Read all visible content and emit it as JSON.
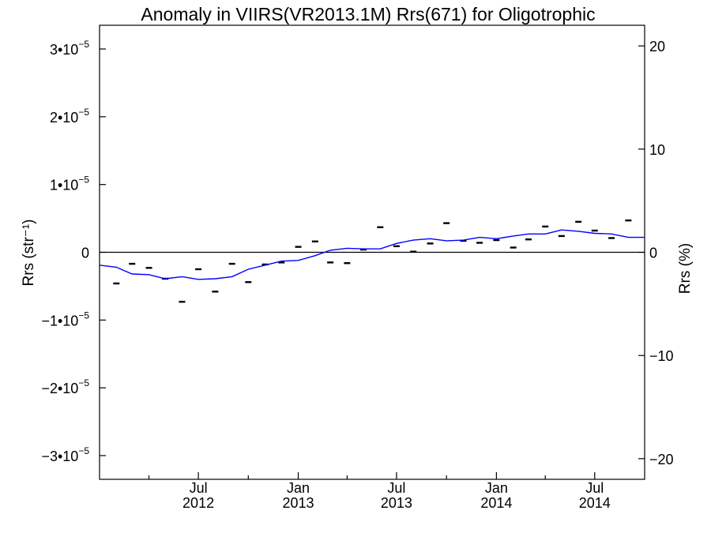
{
  "chart_data": {
    "type": "line",
    "title": "Anomaly in VIIRS(VR2013.1M) Rrs(671) for Oligotrophic",
    "ylabel": "Rrs (str⁻¹)",
    "y2label": "Rrs (%)",
    "xlabel": "",
    "x_range": [
      "2012-01-01",
      "2014-10-01"
    ],
    "ylim": [
      -3.35e-05,
      3.35e-05
    ],
    "y2lim": [
      -22,
      22
    ],
    "grid": false,
    "legend": "none",
    "zero_line": true,
    "y_ticks": [
      {
        "value": 3e-05,
        "mantissa": "3•10",
        "exp": "−5"
      },
      {
        "value": 2e-05,
        "mantissa": "2•10",
        "exp": "−5"
      },
      {
        "value": 1e-05,
        "mantissa": "1•10",
        "exp": "−5"
      },
      {
        "value": 0,
        "mantissa": "0",
        "exp": ""
      },
      {
        "value": -1e-05,
        "mantissa": "−1•10",
        "exp": "−5"
      },
      {
        "value": -2e-05,
        "mantissa": "−2•10",
        "exp": "−5"
      },
      {
        "value": -3e-05,
        "mantissa": "−3•10",
        "exp": "−5"
      }
    ],
    "y2_ticks": [
      {
        "value": 20,
        "label": "20"
      },
      {
        "value": 10,
        "label": "10"
      },
      {
        "value": 0,
        "label": "0"
      },
      {
        "value": -10,
        "label": "−10"
      },
      {
        "value": -20,
        "label": "−20"
      }
    ],
    "x_major_ticks": [
      {
        "date": "2012-07-01",
        "label1": "Jul",
        "label2": "2012"
      },
      {
        "date": "2013-01-01",
        "label1": "Jan",
        "label2": "2013"
      },
      {
        "date": "2013-07-01",
        "label1": "Jul",
        "label2": "2013"
      },
      {
        "date": "2014-01-01",
        "label1": "Jan",
        "label2": "2014"
      },
      {
        "date": "2014-07-01",
        "label1": "Jul",
        "label2": "2014"
      }
    ],
    "x_minor_ticks": [
      "2012-04-01",
      "2012-10-01",
      "2013-04-01",
      "2013-10-01",
      "2014-04-01"
    ],
    "series": [
      {
        "kind": "points",
        "color": "#000000",
        "marker": "dash",
        "x": [
          "2012-02-01",
          "2012-03-01",
          "2012-04-01",
          "2012-05-01",
          "2012-06-01",
          "2012-07-01",
          "2012-08-01",
          "2012-09-01",
          "2012-10-01",
          "2012-11-01",
          "2012-12-01",
          "2013-01-01",
          "2013-02-01",
          "2013-03-01",
          "2013-04-01",
          "2013-05-01",
          "2013-06-01",
          "2013-07-01",
          "2013-08-01",
          "2013-09-01",
          "2013-10-01",
          "2013-11-01",
          "2013-12-01",
          "2014-01-01",
          "2014-02-01",
          "2014-03-01",
          "2014-04-01",
          "2014-05-01",
          "2014-06-01",
          "2014-07-01",
          "2014-08-01",
          "2014-09-01"
        ],
        "y": [
          -4.6e-06,
          -1.7e-06,
          -2.3e-06,
          -3.9e-06,
          -7.3e-06,
          -2.5e-06,
          -5.8e-06,
          -1.7e-06,
          -4.4e-06,
          -1.8e-06,
          -1.5e-06,
          8e-07,
          1.6e-06,
          -1.5e-06,
          -1.6e-06,
          4e-07,
          3.7e-06,
          9e-07,
          1e-07,
          1.3e-06,
          4.3e-06,
          1.7e-06,
          1.4e-06,
          1.8e-06,
          7e-07,
          1.9e-06,
          3.8e-06,
          2.4e-06,
          4.5e-06,
          3.2e-06,
          2.1e-06,
          4.7e-06
        ]
      },
      {
        "kind": "line",
        "color": "#0000ff",
        "x": [
          "2012-01-01",
          "2012-02-01",
          "2012-03-01",
          "2012-04-01",
          "2012-05-01",
          "2012-06-01",
          "2012-07-01",
          "2012-08-01",
          "2012-09-01",
          "2012-10-01",
          "2012-11-01",
          "2012-12-01",
          "2013-01-01",
          "2013-02-01",
          "2013-03-01",
          "2013-04-01",
          "2013-05-01",
          "2013-06-01",
          "2013-07-01",
          "2013-08-01",
          "2013-09-01",
          "2013-10-01",
          "2013-11-01",
          "2013-12-01",
          "2014-01-01",
          "2014-02-01",
          "2014-03-01",
          "2014-04-01",
          "2014-05-01",
          "2014-06-01",
          "2014-07-01",
          "2014-08-01",
          "2014-09-01",
          "2014-10-01"
        ],
        "y": [
          -1.9e-06,
          -2.2e-06,
          -3.2e-06,
          -3.3e-06,
          -3.9e-06,
          -3.6e-06,
          -4e-06,
          -3.9e-06,
          -3.6e-06,
          -2.5e-06,
          -1.9e-06,
          -1.3e-06,
          -1.2e-06,
          -5e-07,
          3e-07,
          6e-07,
          5e-07,
          5e-07,
          1.3e-06,
          1.8e-06,
          2e-06,
          1.7e-06,
          1.8e-06,
          2.2e-06,
          2e-06,
          2.4e-06,
          2.7e-06,
          2.7e-06,
          3.3e-06,
          3.1e-06,
          2.8e-06,
          2.7e-06,
          2.2e-06,
          2.2e-06
        ]
      }
    ]
  }
}
